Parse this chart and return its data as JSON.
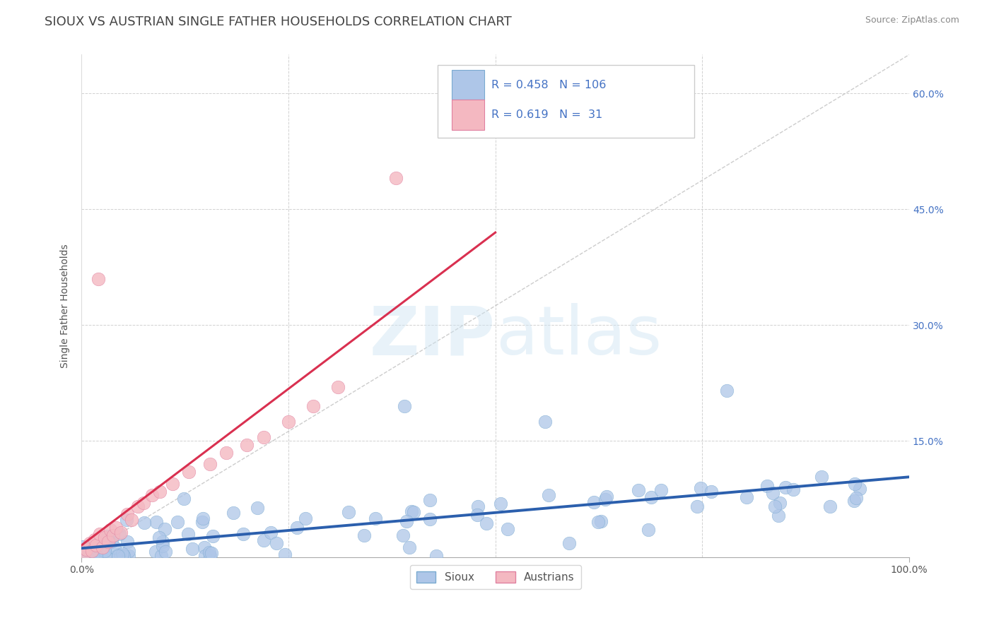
{
  "title": "SIOUX VS AUSTRIAN SINGLE FATHER HOUSEHOLDS CORRELATION CHART",
  "source": "Source: ZipAtlas.com",
  "ylabel": "Single Father Households",
  "xlim": [
    0,
    1.0
  ],
  "ylim": [
    0,
    0.65
  ],
  "ytick_vals": [
    0.15,
    0.3,
    0.45,
    0.6
  ],
  "ytick_labels": [
    "15.0%",
    "30.0%",
    "45.0%",
    "60.0%"
  ],
  "sioux_color": "#aec6e8",
  "austrians_color": "#f4b8c1",
  "sioux_line_color": "#2b5fad",
  "austrians_line_color": "#d93050",
  "sioux_R": 0.458,
  "sioux_N": 106,
  "austrians_R": 0.619,
  "austrians_N": 31,
  "watermark": "ZIPatlas",
  "background_color": "#ffffff",
  "grid_color": "#cccccc",
  "title_color": "#444444",
  "legend_color": "#4472c4"
}
